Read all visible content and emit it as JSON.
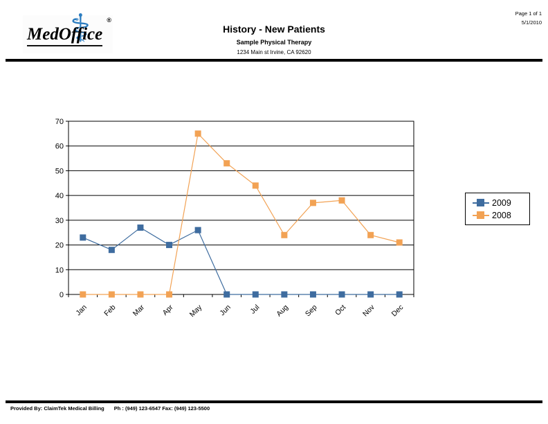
{
  "header": {
    "logo": {
      "name": "MedOffice",
      "symbol": "⚕",
      "registered": "®"
    },
    "title": "History - New Patients",
    "subtitle": "Sample Physical Therapy",
    "address": "1234 Main st Irvine, CA 92620",
    "page_info": "Page 1 of 1",
    "date": "5/1/2010"
  },
  "chart_data": {
    "type": "line",
    "title": "",
    "xlabel": "",
    "ylabel": "",
    "categories": [
      "Jan",
      "Feb",
      "Mar",
      "Apr",
      "May",
      "Jun",
      "Jul",
      "Aug",
      "Sep",
      "Oct",
      "Nov",
      "Dec"
    ],
    "series": [
      {
        "name": "2009",
        "color": "#3E6C9F",
        "values": [
          23,
          18,
          27,
          20,
          26,
          0,
          0,
          0,
          0,
          0,
          0,
          0
        ]
      },
      {
        "name": "2008",
        "color": "#F2A254",
        "values": [
          0,
          0,
          0,
          0,
          65,
          53,
          44,
          24,
          37,
          38,
          24,
          21
        ]
      }
    ],
    "ylim": [
      0,
      70
    ],
    "yticks": [
      0,
      10,
      20,
      30,
      40,
      50,
      60,
      70
    ],
    "grid": true,
    "marker": "square",
    "legend_position": "right"
  },
  "footer": {
    "provided_by": "Provided By: ClaimTek Medical Billing",
    "contact": "Ph : (949) 123-6547 Fax: (949) 123-5500"
  }
}
